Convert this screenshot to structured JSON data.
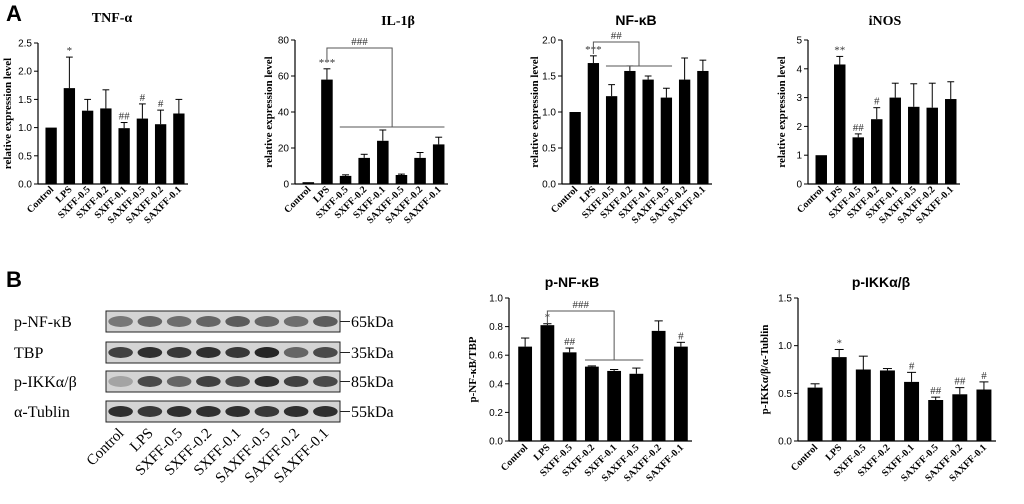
{
  "panels": [
    "A",
    "B"
  ],
  "chart_data": [
    {
      "type": "bar",
      "title": "TNF-α",
      "ylabel": "relative expression level",
      "ylim": [
        0,
        2.5
      ],
      "yticks": [
        "0.0",
        "0.5",
        "1.0",
        "1.5",
        "2.0",
        "2.5"
      ],
      "categories": [
        "Control",
        "LPS",
        "SXFF-0.5",
        "SXFF-0.2",
        "SXFF-0.1",
        "SAXFF-0.5",
        "SAXFF-0.2",
        "SAXFF-0.1"
      ],
      "values": [
        1.0,
        1.7,
        1.3,
        1.34,
        0.99,
        1.16,
        1.06,
        1.25
      ],
      "errors": [
        0,
        0.55,
        0.2,
        0.33,
        0.1,
        0.26,
        0.25,
        0.25
      ],
      "marks": [
        "",
        "*",
        "",
        "",
        "##",
        "#",
        "#",
        ""
      ]
    },
    {
      "type": "bar",
      "title": "IL-1β",
      "ylabel": "relative expression level",
      "ylim": [
        0,
        80
      ],
      "yticks": [
        "0",
        "20",
        "40",
        "60",
        "80"
      ],
      "categories": [
        "Control",
        "LPS",
        "SXFF-0.5",
        "SXFF-0.2",
        "SXFF-0.1",
        "SAXFF-0.5",
        "SAXFF-0.2",
        "SAXFF-0.1"
      ],
      "values": [
        1.0,
        58,
        4.5,
        14.5,
        24,
        5.0,
        14.5,
        22
      ],
      "errors": [
        0,
        6,
        0.6,
        2,
        6,
        0.5,
        3,
        4
      ],
      "marks": [
        "",
        "***",
        "",
        "",
        "",
        "",
        "",
        ""
      ],
      "bracket_label": "###"
    },
    {
      "type": "bar",
      "title": "NF-κB",
      "ylabel": "relative expression level",
      "ylim": [
        0,
        2.0
      ],
      "yticks": [
        "0.0",
        "0.5",
        "1.0",
        "1.5",
        "2.0"
      ],
      "categories": [
        "Control",
        "LPS",
        "SXFF-0.5",
        "SXFF-0.2",
        "SXFF-0.1",
        "SAXFF-0.5",
        "SAXFF-0.2",
        "SAXFF-0.1"
      ],
      "values": [
        1.0,
        1.68,
        1.22,
        1.57,
        1.45,
        1.2,
        1.45,
        1.57
      ],
      "errors": [
        0,
        0.1,
        0.16,
        0.07,
        0.05,
        0.13,
        0.3,
        0.15
      ],
      "marks": [
        "",
        "***",
        "",
        "",
        "",
        "",
        "",
        ""
      ],
      "bracket_label": "##"
    },
    {
      "type": "bar",
      "title": "iNOS",
      "ylabel": "relative expression level",
      "ylim": [
        0,
        5
      ],
      "yticks": [
        "0",
        "1",
        "2",
        "3",
        "4",
        "5"
      ],
      "categories": [
        "Control",
        "LPS",
        "SXFF-0.5",
        "SXFF-0.2",
        "SXFF-0.1",
        "SAXFF-0.5",
        "SAXFF-0.2",
        "SAXFF-0.1"
      ],
      "values": [
        1.0,
        4.15,
        1.62,
        2.25,
        3.0,
        2.68,
        2.65,
        2.95
      ],
      "errors": [
        0,
        0.28,
        0.12,
        0.4,
        0.5,
        0.8,
        0.85,
        0.6
      ],
      "marks": [
        "",
        "**",
        "##",
        "#",
        "",
        "",
        "",
        ""
      ]
    },
    {
      "type": "bar",
      "title": "p-NF-κB",
      "ylabel": "p-NF-κB/TBP",
      "ylim": [
        0,
        1.0
      ],
      "yticks": [
        "0.0",
        "0.2",
        "0.4",
        "0.6",
        "0.8",
        "1.0"
      ],
      "categories": [
        "Control",
        "LPS",
        "SXFF-0.5",
        "SXFF-0.2",
        "SXFF-0.1",
        "SAXFF-0.5",
        "SAXFF-0.2",
        "SAXFF-0.1"
      ],
      "values": [
        0.66,
        0.81,
        0.62,
        0.52,
        0.49,
        0.47,
        0.77,
        0.66
      ],
      "errors": [
        0.06,
        0.01,
        0.03,
        0.005,
        0.01,
        0.04,
        0.07,
        0.03
      ],
      "marks": [
        "",
        "*",
        "##",
        "",
        "",
        "",
        "",
        "#"
      ],
      "bracket_label": "###"
    },
    {
      "type": "bar",
      "title": "p-IKKα/β",
      "ylabel": "p-IKKα/β/α-Tublin",
      "ylim": [
        0,
        1.5
      ],
      "yticks": [
        "0.0",
        "0.5",
        "1.0",
        "1.5"
      ],
      "categories": [
        "Control",
        "LPS",
        "SXFF-0.5",
        "SXFF-0.2",
        "SXFF-0.1",
        "SAXFF-0.5",
        "SAXFF-0.2",
        "SAXFF-0.1"
      ],
      "values": [
        0.56,
        0.88,
        0.75,
        0.74,
        0.62,
        0.43,
        0.49,
        0.54
      ],
      "errors": [
        0.04,
        0.08,
        0.14,
        0.02,
        0.1,
        0.03,
        0.07,
        0.08
      ],
      "marks": [
        "",
        "*",
        "",
        "",
        "#",
        "##",
        "##",
        "#"
      ]
    }
  ],
  "blot": {
    "rows": [
      {
        "label": "p-NF-κB",
        "kda": "65kDa"
      },
      {
        "label": "TBP",
        "kda": "35kDa"
      },
      {
        "label": "p-IKKα/β",
        "kda": "85kDa"
      },
      {
        "label": "α-Tublin",
        "kda": "55kDa"
      }
    ],
    "lanes": [
      "Control",
      "LPS",
      "SXFF-0.5",
      "SXFF-0.2",
      "SXFF-0.1",
      "SAXFF-0.5",
      "SAXFF-0.2",
      "SAXFF-0.1"
    ]
  }
}
